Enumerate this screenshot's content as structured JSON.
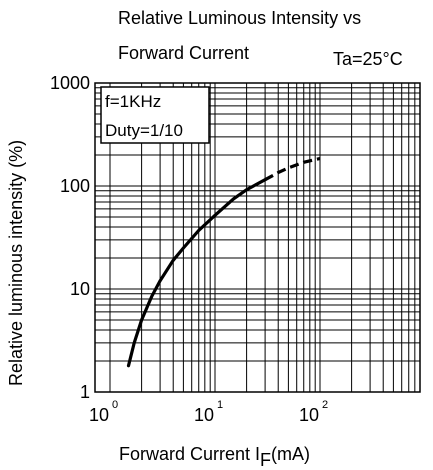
{
  "chart_data": {
    "type": "line",
    "title_line1": "Relative Luminous Intensity vs",
    "title_line2": "Forward Current",
    "condition": "Ta=25°C",
    "annotation_line1": "f=1KHz",
    "annotation_line2": "Duty=1/10",
    "ylabel": "Relative luminous intensity  (%)",
    "xlabel_main": "Forward Current  I",
    "xlabel_sub": "F",
    "xlabel_unit": "(mA)",
    "x_scale": "log",
    "y_scale": "log",
    "xlim": [
      1,
      500
    ],
    "ylim": [
      1,
      1000
    ],
    "grid": true,
    "x_ticks": [
      {
        "base": "10",
        "exp": "0",
        "value": 1
      },
      {
        "base": "10",
        "exp": "1",
        "value": 10
      },
      {
        "base": "10",
        "exp": "2",
        "value": 100
      }
    ],
    "y_ticks": [
      {
        "label": "1",
        "value": 1
      },
      {
        "label": "10",
        "value": 10
      },
      {
        "label": "100",
        "value": 100
      },
      {
        "label": "1000",
        "value": 1000
      }
    ],
    "series": [
      {
        "style": "solid",
        "x": [
          1.5,
          1.7,
          2,
          2.5,
          3,
          4,
          5,
          7,
          10,
          15,
          20,
          30
        ],
        "y": [
          1.8,
          3,
          5,
          8.5,
          12,
          19,
          25,
          37,
          52,
          75,
          92,
          115
        ]
      },
      {
        "style": "dashed",
        "x": [
          30,
          40,
          50,
          70,
          100
        ],
        "y": [
          115,
          135,
          150,
          170,
          185
        ]
      }
    ]
  }
}
